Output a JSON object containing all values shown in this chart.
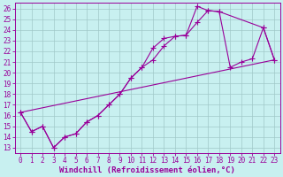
{
  "xlabel": "Windchill (Refroidissement éolien,°C)",
  "bg_color": "#c8f0f0",
  "grid_color": "#a0c8c8",
  "line_color": "#990099",
  "markersize": 2.5,
  "linewidth": 0.8,
  "xlim": [
    -0.5,
    23.5
  ],
  "ylim": [
    12.5,
    26.5
  ],
  "xticks": [
    0,
    1,
    2,
    3,
    4,
    5,
    6,
    7,
    8,
    9,
    10,
    11,
    12,
    13,
    14,
    15,
    16,
    17,
    18,
    19,
    20,
    21,
    22,
    23
  ],
  "yticks": [
    13,
    14,
    15,
    16,
    17,
    18,
    19,
    20,
    21,
    22,
    23,
    24,
    25,
    26
  ],
  "tick_fontsize": 5.5,
  "xlabel_fontsize": 6.5,
  "line1_x": [
    0,
    1,
    2,
    3,
    4,
    5,
    6,
    7,
    8,
    9,
    10,
    11,
    12,
    13,
    14,
    15,
    16,
    17,
    18,
    22,
    23
  ],
  "line1_y": [
    16.3,
    14.5,
    15.0,
    13.0,
    14.0,
    14.3,
    15.4,
    16.0,
    17.0,
    18.0,
    19.5,
    20.5,
    22.3,
    23.2,
    23.4,
    23.5,
    26.2,
    25.8,
    25.7,
    24.2,
    21.2
  ],
  "line2_x": [
    0,
    1,
    2,
    3,
    4,
    5,
    6,
    7,
    8,
    9,
    10,
    11,
    12,
    13,
    14,
    15,
    16,
    17,
    18,
    19,
    20,
    21,
    22,
    23
  ],
  "line2_y": [
    16.3,
    14.5,
    15.0,
    13.0,
    14.0,
    14.3,
    15.4,
    16.0,
    17.0,
    18.0,
    19.5,
    20.5,
    21.2,
    22.5,
    23.4,
    23.5,
    24.7,
    25.8,
    25.7,
    20.5,
    21.0,
    21.3,
    24.2,
    21.2
  ]
}
